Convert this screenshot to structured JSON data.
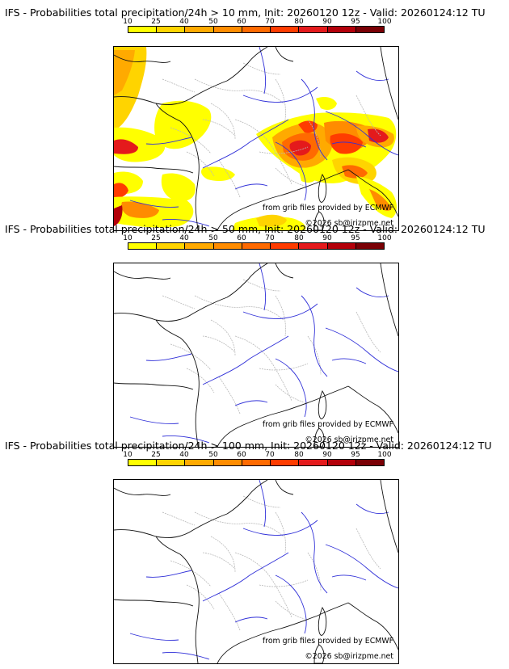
{
  "panels": [
    {
      "title": "IFS - Probabilities total precipitation/24h > 10 mm, Init: 20260120 12z - Valid: 20260124:12 TU",
      "threshold_mm": 10,
      "credit_source": "from grib files provided by ECMWF",
      "credit_copyright": "©2026 sb@irizpme.net",
      "has_precip": true
    },
    {
      "title": "IFS - Probabilities total precipitation/24h > 50 mm, Init: 20260120 12z - Valid: 20260124:12 TU",
      "threshold_mm": 50,
      "credit_source": "from grib files provided by ECMWF",
      "credit_copyright": "©2026 sb@irizpme.net",
      "has_precip": false
    },
    {
      "title": "IFS - Probabilities total precipitation/24h > 100 mm, Init: 20260120 12z - Valid: 20260124:12 TU",
      "threshold_mm": 100,
      "credit_source": "from grib files provided by ECMWF",
      "credit_copyright": "©2026 sb@irizpme.net",
      "has_precip": false
    }
  ],
  "colorbar": {
    "ticks": [
      "10",
      "25",
      "40",
      "50",
      "60",
      "70",
      "80",
      "90",
      "95",
      "100"
    ],
    "colors": [
      "#ffff00",
      "#ffd400",
      "#ffaa00",
      "#ff8c00",
      "#ff6a00",
      "#ff3c00",
      "#e41a1c",
      "#b3000a",
      "#7a0005"
    ]
  },
  "colors": {
    "coast": "#111111",
    "rivers": "#3030d8",
    "regions": "#b8b8b8"
  }
}
